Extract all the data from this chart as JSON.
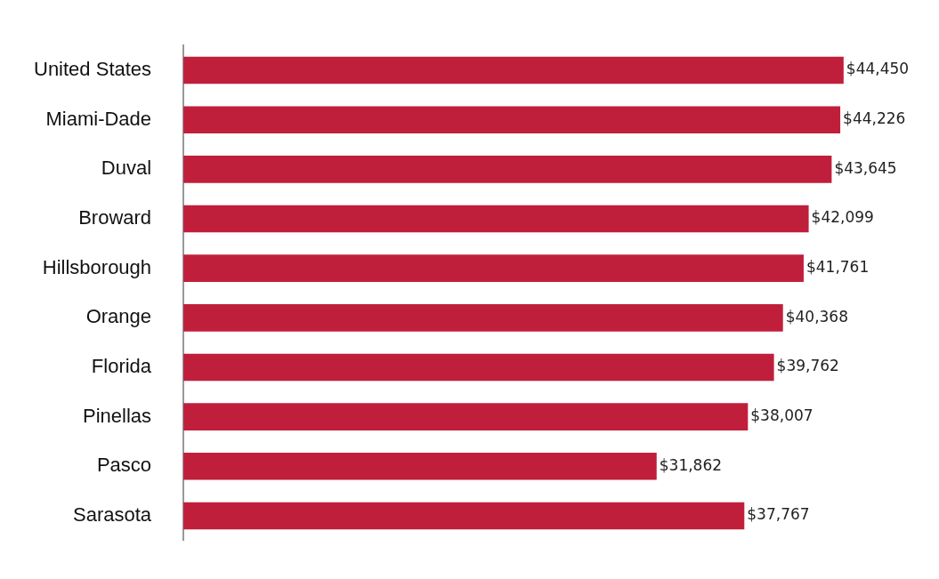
{
  "chart_data": {
    "type": "bar",
    "orientation": "horizontal",
    "categories": [
      "United States",
      "Miami-Dade",
      "Duval",
      "Broward",
      "Hillsborough",
      "Orange",
      "Florida",
      "Pinellas",
      "Pasco",
      "Sarasota"
    ],
    "values": [
      44450,
      44226,
      43645,
      42099,
      41761,
      40368,
      39762,
      38007,
      31862,
      37767
    ],
    "value_labels": [
      "$44,450",
      "$44,226",
      "$43,645",
      "$42,099",
      "$41,761",
      "$40,368",
      "$39,762",
      "$38,007",
      "$31,862",
      "$37,767"
    ],
    "color": "#c01f3c",
    "grid": false,
    "legend": false,
    "tick_labels": "y"
  }
}
